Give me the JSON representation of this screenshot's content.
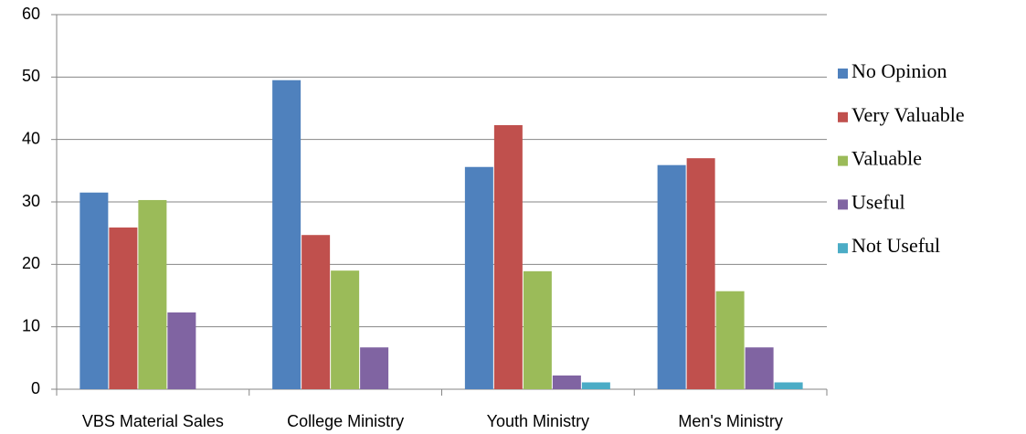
{
  "chart_data": {
    "type": "bar",
    "categories": [
      "VBS Material Sales",
      "College Ministry",
      "Youth Ministry",
      "Men's Ministry"
    ],
    "series": [
      {
        "name": "No Opinion",
        "color": "#4f81bd",
        "values": [
          31.5,
          49.5,
          35.6,
          35.9
        ]
      },
      {
        "name": "Very Valuable",
        "color": "#c0504d",
        "values": [
          25.9,
          24.7,
          42.3,
          37.0
        ]
      },
      {
        "name": "Valuable",
        "color": "#9bbb59",
        "values": [
          30.3,
          19.0,
          18.9,
          15.7
        ]
      },
      {
        "name": "Useful",
        "color": "#8064a2",
        "values": [
          12.3,
          6.7,
          2.2,
          6.7
        ]
      },
      {
        "name": "Not Useful",
        "color": "#4bacc6",
        "values": [
          0,
          0,
          1.1,
          1.1
        ]
      }
    ],
    "ylim": [
      0,
      60
    ],
    "yticks": [
      0,
      10,
      20,
      30,
      40,
      50,
      60
    ],
    "grid": true,
    "legend": "right"
  }
}
